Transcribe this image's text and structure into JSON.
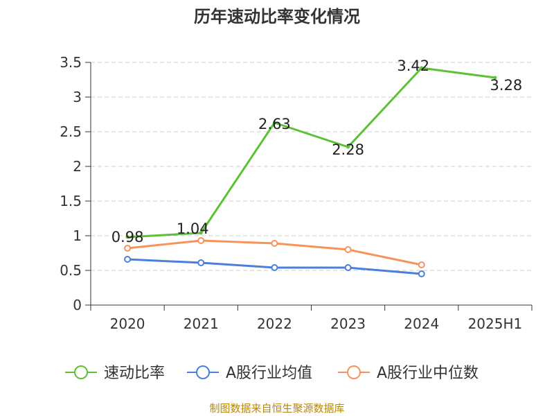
{
  "chart_data": {
    "type": "line",
    "title": "历年速动比率变化情况",
    "categories": [
      "2020",
      "2021",
      "2022",
      "2023",
      "2024",
      "2025H1"
    ],
    "ylim": [
      0,
      3.5
    ],
    "yticks": [
      "0",
      "0.5",
      "1",
      "1.5",
      "2",
      "2.5",
      "3",
      "3.5"
    ],
    "grid": true,
    "legend_position": "bottom",
    "series": [
      {
        "name": "速动比率",
        "color": "#5cc135",
        "values": [
          0.98,
          1.04,
          2.63,
          2.28,
          3.42,
          3.28
        ],
        "labels": [
          "0.98",
          "1.04",
          "2.63",
          "2.28",
          "3.42",
          "3.28"
        ]
      },
      {
        "name": "A股行业均值",
        "color": "#4a7fdb",
        "values": [
          0.66,
          0.61,
          0.54,
          0.54,
          0.45,
          null
        ]
      },
      {
        "name": "A股行业中位数",
        "color": "#f7935a",
        "values": [
          0.82,
          0.93,
          0.89,
          0.8,
          0.58,
          null
        ]
      }
    ],
    "source": "制图数据来自恒生聚源数据库"
  }
}
